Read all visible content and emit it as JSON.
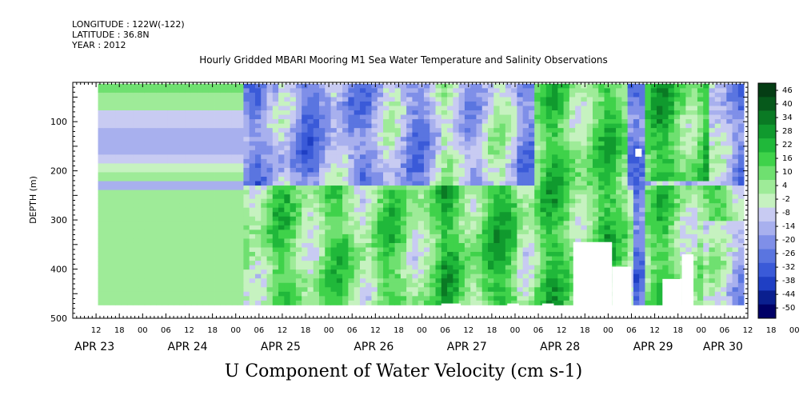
{
  "header": {
    "longitude": "LONGITUDE : 122W(-122)",
    "latitude": "LATITUDE : 36.8N",
    "year": "YEAR : 2012"
  },
  "chart_data": {
    "type": "heatmap",
    "title": "Hourly Gridded MBARI Mooring M1 Sea Water Temperature and Salinity Observations",
    "subtitle": "U Component of Water Velocity (cm s-1)",
    "xlabel": "",
    "ylabel": "DEPTH (m)",
    "x_range_hours_from_apr23_00": [
      6,
      180
    ],
    "y_range": [
      20,
      500
    ],
    "y_ticks": [
      100,
      200,
      300,
      400,
      500
    ],
    "x_hour_ticks": [
      "12",
      "18",
      "00",
      "06",
      "12",
      "18",
      "00",
      "06",
      "12",
      "18",
      "00",
      "06",
      "12",
      "18",
      "00",
      "06",
      "12",
      "18",
      "00",
      "06",
      "12",
      "18",
      "00",
      "06",
      "12",
      "18",
      "00",
      "06",
      "12",
      "18",
      "00",
      "06"
    ],
    "date_labels": [
      "APR 23",
      "APR 24",
      "APR 25",
      "APR 26",
      "APR 27",
      "APR 28",
      "APR 29",
      "APR 30"
    ],
    "colorbar": {
      "levels": [
        "46",
        "40",
        "34",
        "28",
        "22",
        "16",
        "10",
        "4",
        "-2",
        "-8",
        "-14",
        "-20",
        "-26",
        "-32",
        "-38",
        "-44",
        "-50"
      ],
      "range": [
        -50,
        50
      ],
      "colors": [
        "#000066",
        "#0a1f8f",
        "#1f3fc4",
        "#3a5ad8",
        "#5a75e0",
        "#7f8fe8",
        "#a8b0ee",
        "#c8cbf2",
        "#c6f2c0",
        "#9eeb98",
        "#6fe070",
        "#3fd24a",
        "#20b83a",
        "#109a2e",
        "#0a7a24",
        "#06591b",
        "#053d14"
      ]
    },
    "data_gaps": [
      {
        "x_hours": [
          6,
          18
        ],
        "note": ""
      },
      {
        "x_hours": [
          150,
          153
        ],
        "note": ""
      }
    ]
  }
}
